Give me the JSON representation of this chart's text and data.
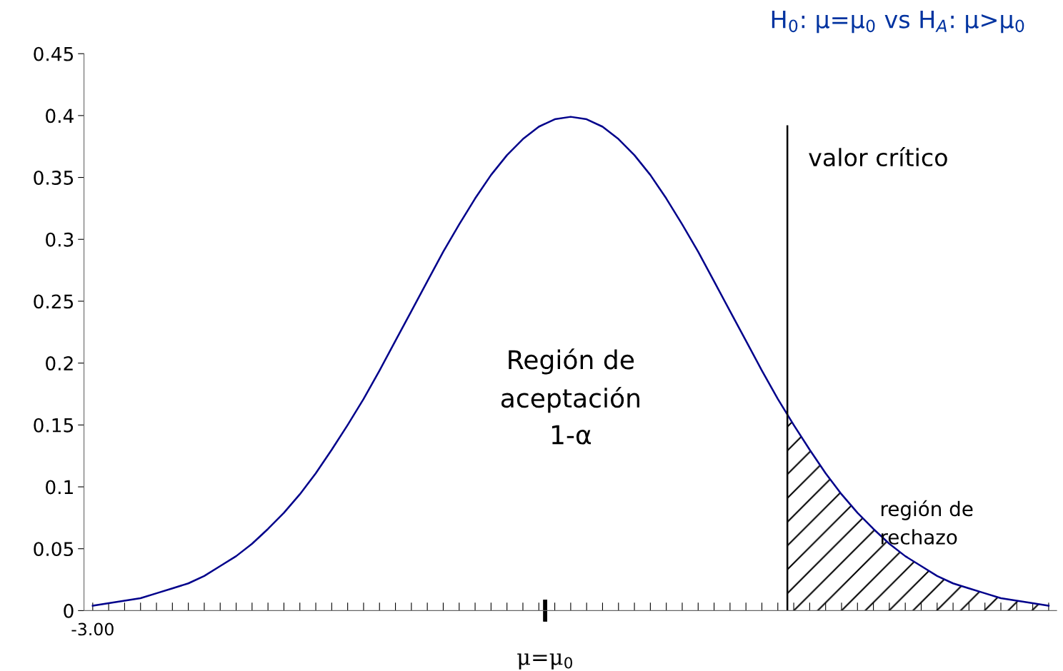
{
  "chart_data": {
    "type": "line",
    "title": "H$_{0}$: μ=μ$_{0}$ vs H$_{A}$: μ>μ$_{0}$",
    "categories": [
      "-3.00",
      null,
      null,
      null,
      null,
      null,
      null,
      null,
      null,
      null,
      null,
      null,
      null,
      null,
      null,
      null,
      null,
      null,
      null,
      null,
      null,
      null,
      null,
      null,
      null,
      null,
      null,
      null,
      null,
      null,
      null,
      null,
      null,
      null,
      null,
      null,
      null,
      null,
      null,
      null,
      null,
      null,
      null,
      null,
      null,
      null,
      null,
      null,
      null,
      null,
      null,
      null,
      null,
      null,
      null,
      null,
      null,
      null,
      null,
      null,
      null
    ],
    "series": [
      {
        "color": "#00008b",
        "values": [
          0.004,
          0.006,
          0.008,
          0.01,
          0.014,
          0.018,
          0.022,
          0.028,
          0.036,
          0.044,
          0.054,
          0.066,
          0.079,
          0.094,
          0.111,
          0.13,
          0.15,
          0.171,
          0.194,
          0.218,
          0.242,
          0.266,
          0.29,
          0.312,
          0.333,
          0.352,
          0.368,
          0.381,
          0.391,
          0.397,
          0.399,
          0.397,
          0.391,
          0.381,
          0.368,
          0.352,
          0.333,
          0.312,
          0.29,
          0.266,
          0.242,
          0.218,
          0.194,
          0.171,
          0.15,
          0.13,
          0.111,
          0.094,
          0.079,
          0.066,
          0.054,
          0.044,
          0.036,
          0.028,
          0.022,
          0.018,
          0.014,
          0.01,
          0.008,
          0.006,
          0.004
        ]
      }
    ],
    "ylim": [
      0,
      0.45
    ],
    "yticks": [
      0,
      0.05,
      0.1,
      0.15,
      0.2,
      0.25,
      0.3,
      0.35,
      0.4,
      0.45
    ],
    "annotations": [
      "μ=μ$_{0}$",
      "Región de\naceptación\n1-α",
      "valor crítico",
      "región de\nrechazo"
    ],
    "grid": false,
    "legend": false,
    "marker": "none",
    "line_style": "solid"
  }
}
